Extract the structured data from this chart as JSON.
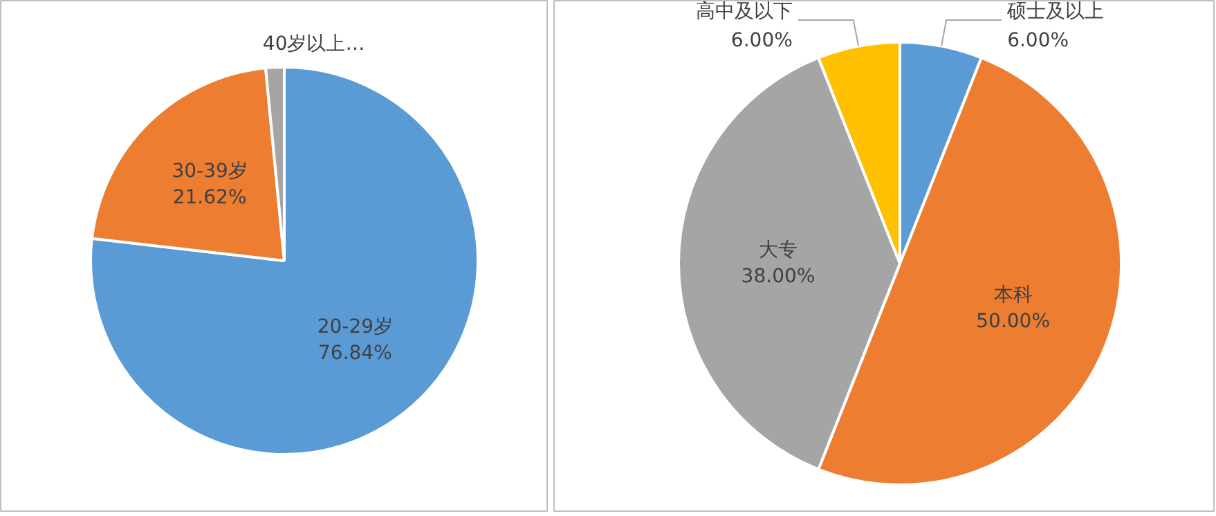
{
  "chart_data": [
    {
      "type": "pie",
      "categories": [
        "20-29岁",
        "30-39岁",
        "40岁以上…"
      ],
      "values": [
        76.84,
        21.62,
        1.54
      ],
      "colors": [
        "#5b9bd5",
        "#ed7d31",
        "#a5a5a5"
      ],
      "value_labels": [
        "76.84%",
        "21.62%",
        null
      ]
    },
    {
      "type": "pie",
      "categories": [
        "硕士及以上",
        "本科",
        "大专",
        "高中及以下"
      ],
      "values": [
        6,
        50,
        38,
        6
      ],
      "colors": [
        "#5b9bd5",
        "#ed7d31",
        "#a5a5a5",
        "#ffc000"
      ],
      "value_labels": [
        "6.00%",
        "50.00%",
        "38.00%",
        "6.00%"
      ]
    }
  ]
}
